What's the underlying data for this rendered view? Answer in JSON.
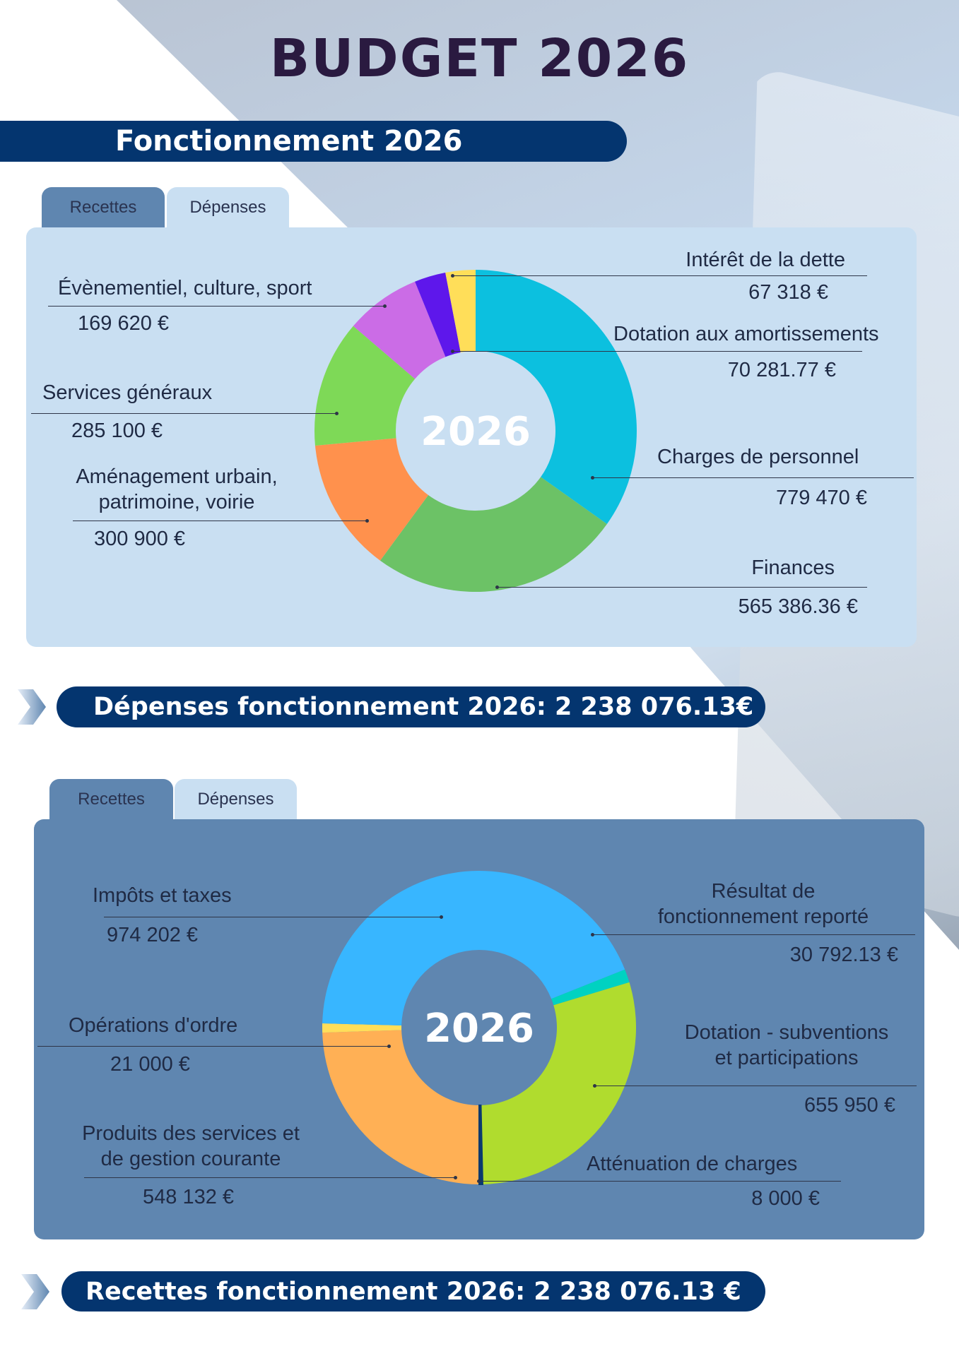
{
  "title": "BUDGET 2026",
  "section_title": "Fonctionnement 2026",
  "tabs": {
    "recettes": "Recettes",
    "depenses": "Dépenses"
  },
  "depenses_chart": {
    "center_label": "2026",
    "slices": [
      {
        "label": "Charges de personnel",
        "value": 779470,
        "value_text": "779 470 €",
        "color": "#0cc0df"
      },
      {
        "label": "Finances",
        "value": 565386.36,
        "value_text": "565 386.36 €",
        "color": "#6cc266"
      },
      {
        "label": "Aménagement urbain, patrimoine, voirie",
        "label_line1": "Aménagement urbain,",
        "label_line2": "patrimoine, voirie",
        "value": 300900,
        "value_text": "300 900 €",
        "color": "#ff914d"
      },
      {
        "label": "Services généraux",
        "value": 285100,
        "value_text": "285 100 €",
        "color": "#7ed957"
      },
      {
        "label": "Évènementiel, culture, sport",
        "value": 169620,
        "value_text": "169 620 €",
        "color": "#cb6ce6"
      },
      {
        "label": "Dotation aux amortissements",
        "value": 70281.77,
        "value_text": "70 281.77 €",
        "color": "#5e17eb"
      },
      {
        "label": "Intérêt de la dette",
        "value": 67318,
        "value_text": "67 318 €",
        "color": "#ffde59"
      }
    ]
  },
  "depenses_total": "Dépenses fonctionnement 2026: 2 238 076.13€",
  "recettes_chart": {
    "center_label": "2026",
    "slices": [
      {
        "label": "Produits des services et de gestion courante",
        "label_line1": "Produits des services et",
        "label_line2": "de gestion courante",
        "value": 548132,
        "value_text": "548 132 €",
        "color": "#ffb055"
      },
      {
        "label": "Opérations d'ordre",
        "value": 21000,
        "value_text": "21 000 €",
        "color": "#ffde59"
      },
      {
        "label": "Impôts et taxes",
        "value": 974202,
        "value_text": "974 202 €",
        "color": "#38b6ff"
      },
      {
        "label": "Résultat de fonctionnement reporté",
        "label_line1": "Résultat de",
        "label_line2": "fonctionnement reporté",
        "value": 30792.13,
        "value_text": "30 792.13 €",
        "color": "#00d2c1"
      },
      {
        "label": "Dotation - subventions et participations",
        "label_line1": "Dotation - subventions",
        "label_line2": "et participations",
        "value": 655950,
        "value_text": "655 950 €",
        "color": "#b0dc2e"
      },
      {
        "label": "Atténuation de charges",
        "value": 8000,
        "value_text": "8 000 €",
        "color": "#0b3a6e"
      }
    ]
  },
  "recettes_total": "Recettes fonctionnement 2026: 2 238 076.13 €"
}
